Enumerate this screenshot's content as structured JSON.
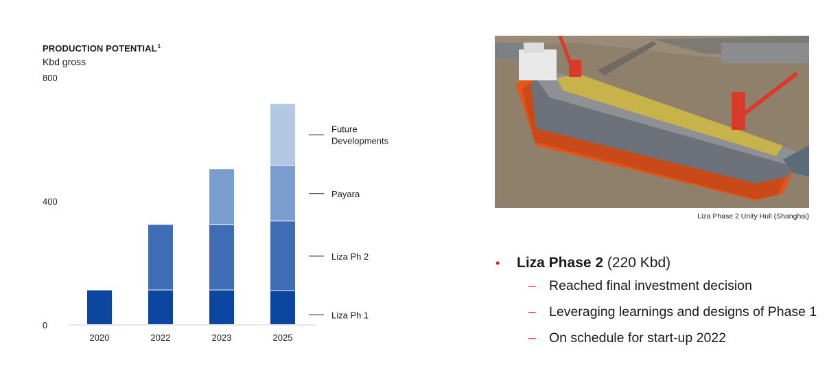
{
  "chart_data": {
    "type": "bar",
    "stacked": true,
    "title": "PRODUCTION POTENTIAL",
    "title_footnote": "1",
    "ylabel": "Kbd gross",
    "ylim": [
      0,
      800
    ],
    "yticks": [
      0,
      400,
      800
    ],
    "categories": [
      "2020",
      "2022",
      "2023",
      "2025"
    ],
    "series": [
      {
        "name": "Liza Ph 1",
        "color": "#0b47a1",
        "values": [
          112,
          112,
          112,
          110
        ]
      },
      {
        "name": "Liza Ph 2",
        "color": "#3f6db5",
        "values": [
          0,
          212,
          212,
          225
        ]
      },
      {
        "name": "Payara",
        "color": "#7a9ccf",
        "values": [
          0,
          0,
          180,
          180
        ]
      },
      {
        "name": "Future Developments",
        "color": "#b4c8e3",
        "values": [
          0,
          0,
          0,
          200
        ]
      }
    ],
    "legend_placement": "right, aligned with segments"
  },
  "photo": {
    "caption": "Liza Phase 2 Unity Hull (Shanghai)"
  },
  "bullets": {
    "main_bold": "Liza Phase 2",
    "main_rest": " (220 Kbd)",
    "sub_items": [
      "Reached final investment decision",
      "Leveraging learnings and designs of Phase 1",
      "On schedule for start-up 2022"
    ]
  }
}
